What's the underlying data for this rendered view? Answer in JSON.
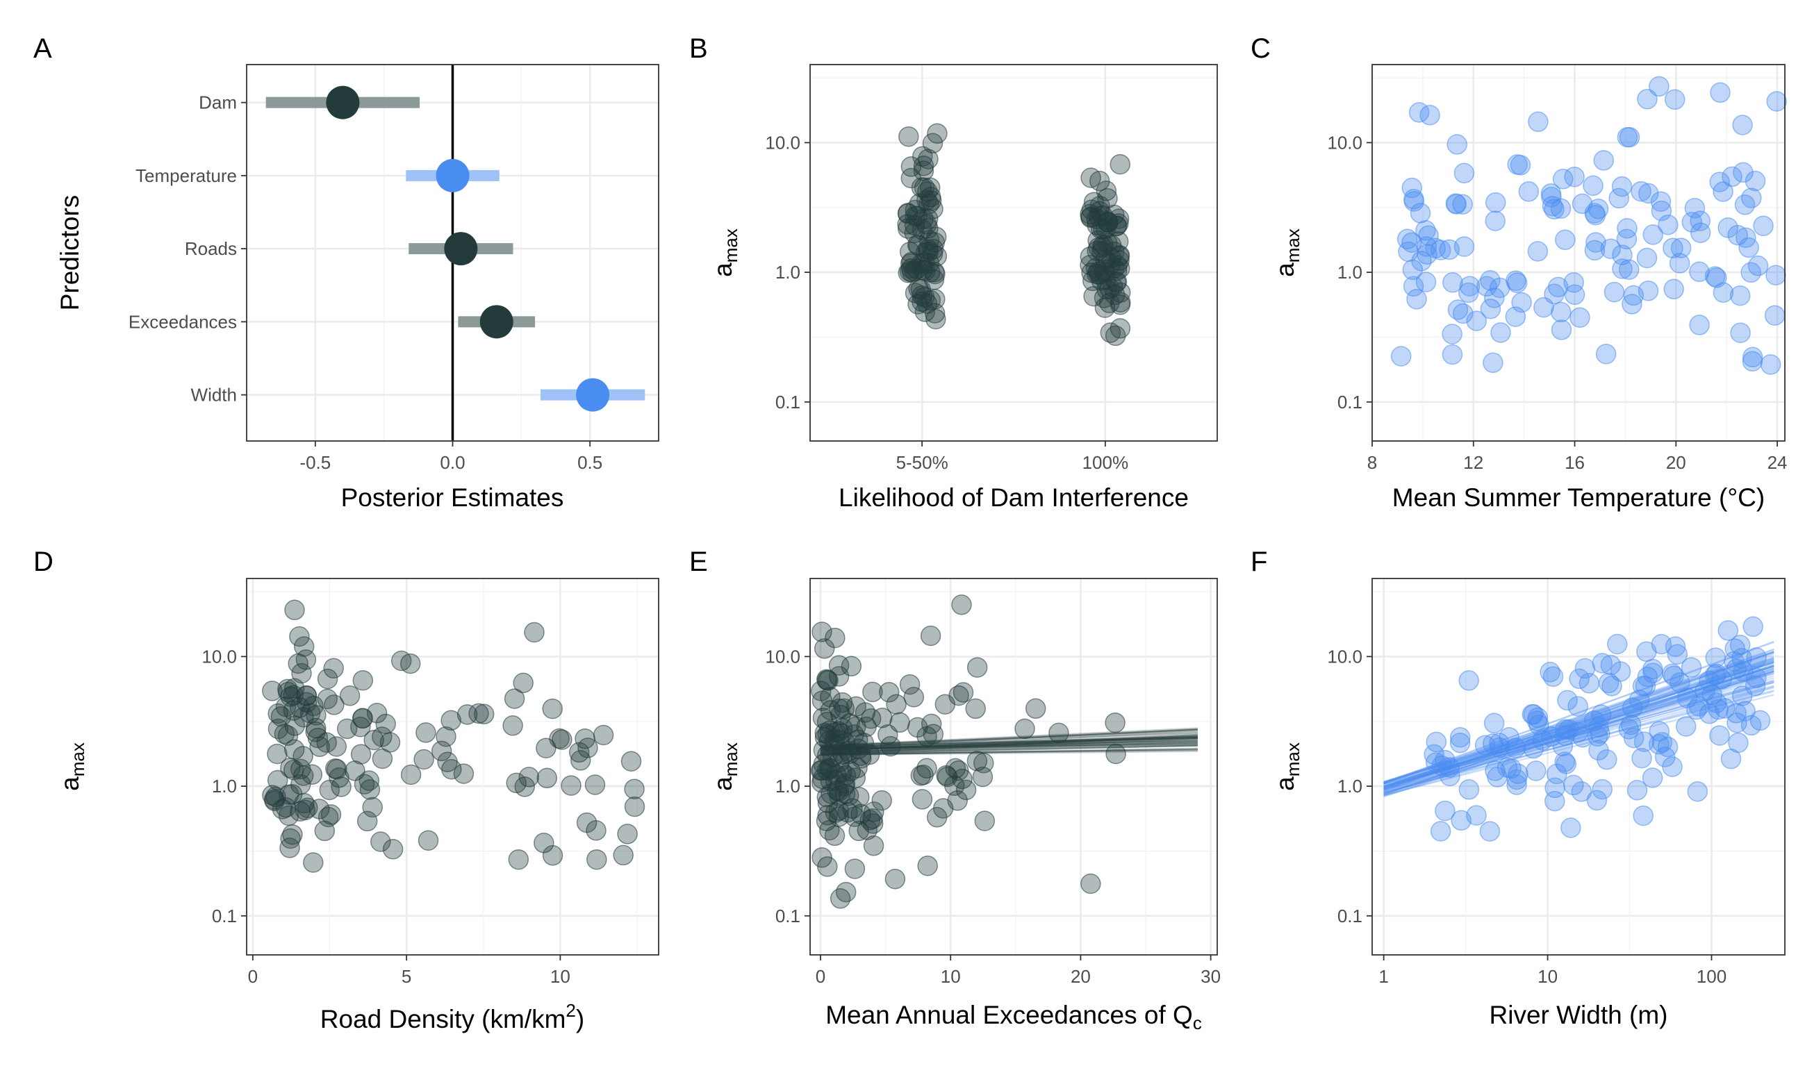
{
  "colors": {
    "dark": "#233b3b",
    "blue": "#4a8df0",
    "dark_bar": "#8b9a99",
    "blue_bar": "#9ec1f6"
  },
  "chart_data": [
    {
      "panel": "A",
      "type": "forest",
      "xlabel": "Posterior Estimates",
      "ylabel": "Predictors",
      "xlim": [
        -0.75,
        0.75
      ],
      "xticks": [
        "-0.5",
        "0.0",
        "0.5"
      ],
      "zero_line": true,
      "predictors": [
        {
          "name": "Dam",
          "estimate": -0.4,
          "lower": -0.68,
          "upper": -0.12,
          "color": "dark"
        },
        {
          "name": "Temperature",
          "estimate": 0.0,
          "lower": -0.17,
          "upper": 0.17,
          "color": "blue"
        },
        {
          "name": "Roads",
          "estimate": 0.03,
          "lower": -0.16,
          "upper": 0.22,
          "color": "dark"
        },
        {
          "name": "Exceedances",
          "estimate": 0.16,
          "lower": 0.02,
          "upper": 0.3,
          "color": "dark"
        },
        {
          "name": "Width",
          "estimate": 0.51,
          "lower": 0.32,
          "upper": 0.7,
          "color": "blue"
        }
      ]
    },
    {
      "panel": "B",
      "type": "scatter",
      "xlabel": "Likelihood of Dam Interference",
      "ylabel_main": "a",
      "ylabel_sub": "max",
      "ylog": true,
      "ylim": [
        0.05,
        40
      ],
      "yticks": [
        "0.1",
        "1.0",
        "10.0"
      ],
      "categories": [
        "5-50%",
        "100%"
      ],
      "color": "dark",
      "groups": [
        {
          "category": "5-50%",
          "center": 2.0,
          "spread": 0.52,
          "n": 75
        },
        {
          "category": "100%",
          "center": 1.7,
          "spread": 0.5,
          "n": 75
        }
      ]
    },
    {
      "panel": "C",
      "type": "scatter",
      "xlabel": "Mean Summer Temperature (°C)",
      "ylabel_main": "a",
      "ylabel_sub": "max",
      "ylog": true,
      "xlim": [
        8,
        24.3
      ],
      "ylim": [
        0.05,
        40
      ],
      "xticks": [
        "8",
        "12",
        "16",
        "20",
        "24"
      ],
      "yticks": [
        "0.1",
        "1.0",
        "10.0"
      ],
      "color": "blue",
      "n": 140
    },
    {
      "panel": "D",
      "type": "scatter",
      "xlabel": "Road Density (km/km",
      "xlabel_sup": "2",
      "xlabel_end": ")",
      "ylabel_main": "a",
      "ylabel_sub": "max",
      "ylog": true,
      "xlim": [
        -0.2,
        13.2
      ],
      "ylim": [
        0.05,
        40
      ],
      "xticks": [
        "0",
        "5",
        "10"
      ],
      "yticks": [
        "0.1",
        "1.0",
        "10.0"
      ],
      "color": "dark",
      "n": 140
    },
    {
      "panel": "E",
      "type": "scatter",
      "xlabel": "Mean Annual Exceedances of Q",
      "xlabel_sub": "c",
      "ylabel_main": "a",
      "ylabel_sub": "max",
      "ylog": true,
      "xlim": [
        -0.8,
        30.5
      ],
      "ylim": [
        0.05,
        40
      ],
      "xticks": [
        "0",
        "10",
        "20",
        "30"
      ],
      "yticks": [
        "0.1",
        "1.0",
        "10.0"
      ],
      "color": "dark",
      "n": 150,
      "posterior_lines": {
        "count": 60,
        "x_range": [
          0,
          29
        ],
        "intercept": 1.9,
        "slope_range": [
          0.015,
          0.095
        ]
      }
    },
    {
      "panel": "F",
      "type": "scatter",
      "xlabel": "River Width (m)",
      "ylabel_main": "a",
      "ylabel_sub": "max",
      "ylog": true,
      "xlog": true,
      "xlim": [
        0.85,
        280
      ],
      "ylim": [
        0.05,
        40
      ],
      "xticks": [
        "1",
        "10",
        "100"
      ],
      "yticks": [
        "0.1",
        "1.0",
        "10.0"
      ],
      "color": "blue",
      "n": 140,
      "posterior_lines": {
        "count": 60,
        "x_range": [
          1,
          240
        ],
        "intercept": 0.95,
        "slope_range": [
          0.32,
          0.46
        ]
      }
    }
  ]
}
